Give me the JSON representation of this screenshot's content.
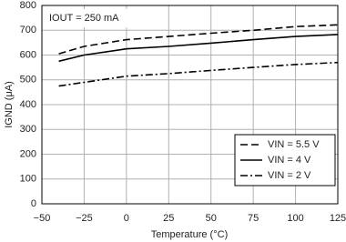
{
  "chart_data": {
    "type": "line",
    "annotation": "IOUT = 250 mA",
    "xlabel": "Temperature (°C)",
    "ylabel": "IGND (μA)",
    "x": [
      -40,
      -25,
      0,
      25,
      50,
      75,
      100,
      125
    ],
    "series": [
      {
        "name": "VIN = 5.5 V",
        "color": "#000000",
        "dash": "dashed",
        "values": [
          605,
          635,
          662,
          675,
          688,
          700,
          715,
          722
        ]
      },
      {
        "name": "VIN = 4 V",
        "color": "#000000",
        "dash": "solid",
        "values": [
          575,
          600,
          625,
          635,
          648,
          662,
          675,
          683
        ]
      },
      {
        "name": "VIN = 2 V",
        "color": "#000000",
        "dash": "dashdot",
        "values": [
          475,
          490,
          515,
          525,
          538,
          550,
          562,
          570
        ]
      }
    ],
    "xlim": [
      -50,
      125
    ],
    "xticks": [
      {
        "value": -50,
        "label": "−50"
      },
      {
        "value": -25,
        "label": "−25"
      },
      0,
      25,
      50,
      75,
      100,
      125
    ],
    "ylim": [
      0,
      800
    ],
    "yticks": [
      0,
      100,
      200,
      300,
      400,
      500,
      600,
      700,
      800
    ],
    "grid": true,
    "legend": "lower right"
  }
}
